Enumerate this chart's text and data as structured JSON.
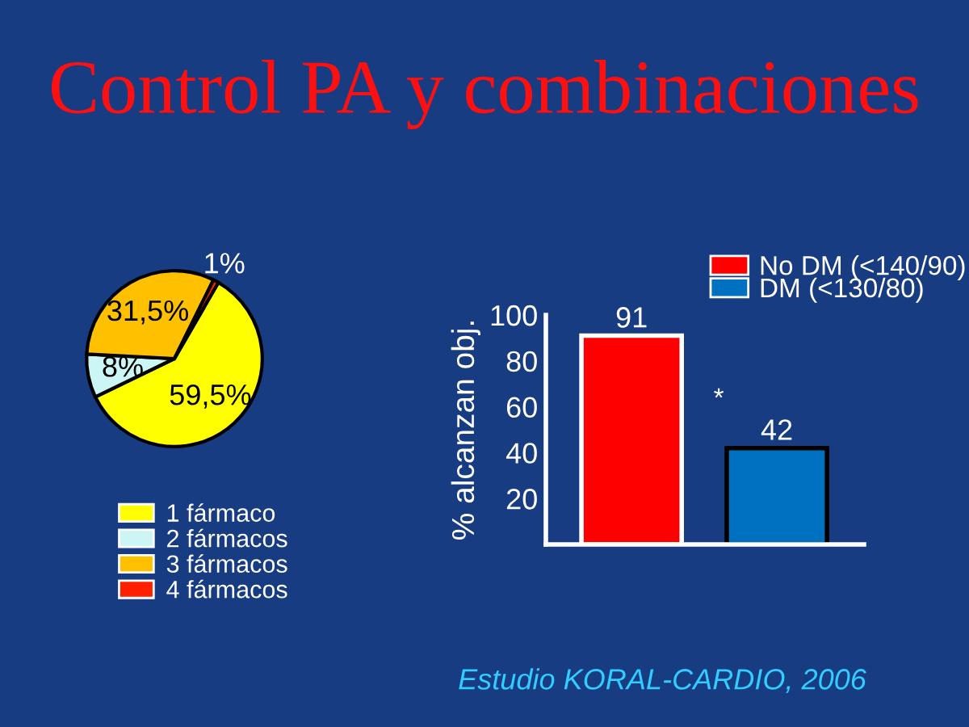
{
  "chart_data": [
    {
      "type": "pie",
      "title": "Control PA y combinaciones",
      "categories": [
        "1 fármaco",
        "2 fármacos",
        "3 fármacos",
        "4 fármacos"
      ],
      "values": [
        59.5,
        8,
        31.5,
        1
      ],
      "colors": [
        "#ffff00",
        "#ccf5f5",
        "#ffc000",
        "#ff2000"
      ],
      "value_labels": [
        "59,5%",
        "8%",
        "31,5%",
        "1%"
      ],
      "legend": "bottom"
    },
    {
      "type": "bar",
      "ylabel": "% alcanzan obj.",
      "categories": [
        null,
        null
      ],
      "series": [
        {
          "name": "No DM (<140/90)",
          "color": "#ff0000",
          "values": [
            91,
            null
          ]
        },
        {
          "name": "DM (<130/80)",
          "color": "#0070c0",
          "values": [
            null,
            42
          ]
        }
      ],
      "ylim": [
        0,
        100
      ],
      "yticks": [
        20,
        40,
        60,
        80,
        100
      ],
      "data_labels": true,
      "legend": "top right",
      "annotations": [
        "*",
        "Estudio KORAL-CARDIO, 2006"
      ]
    }
  ]
}
